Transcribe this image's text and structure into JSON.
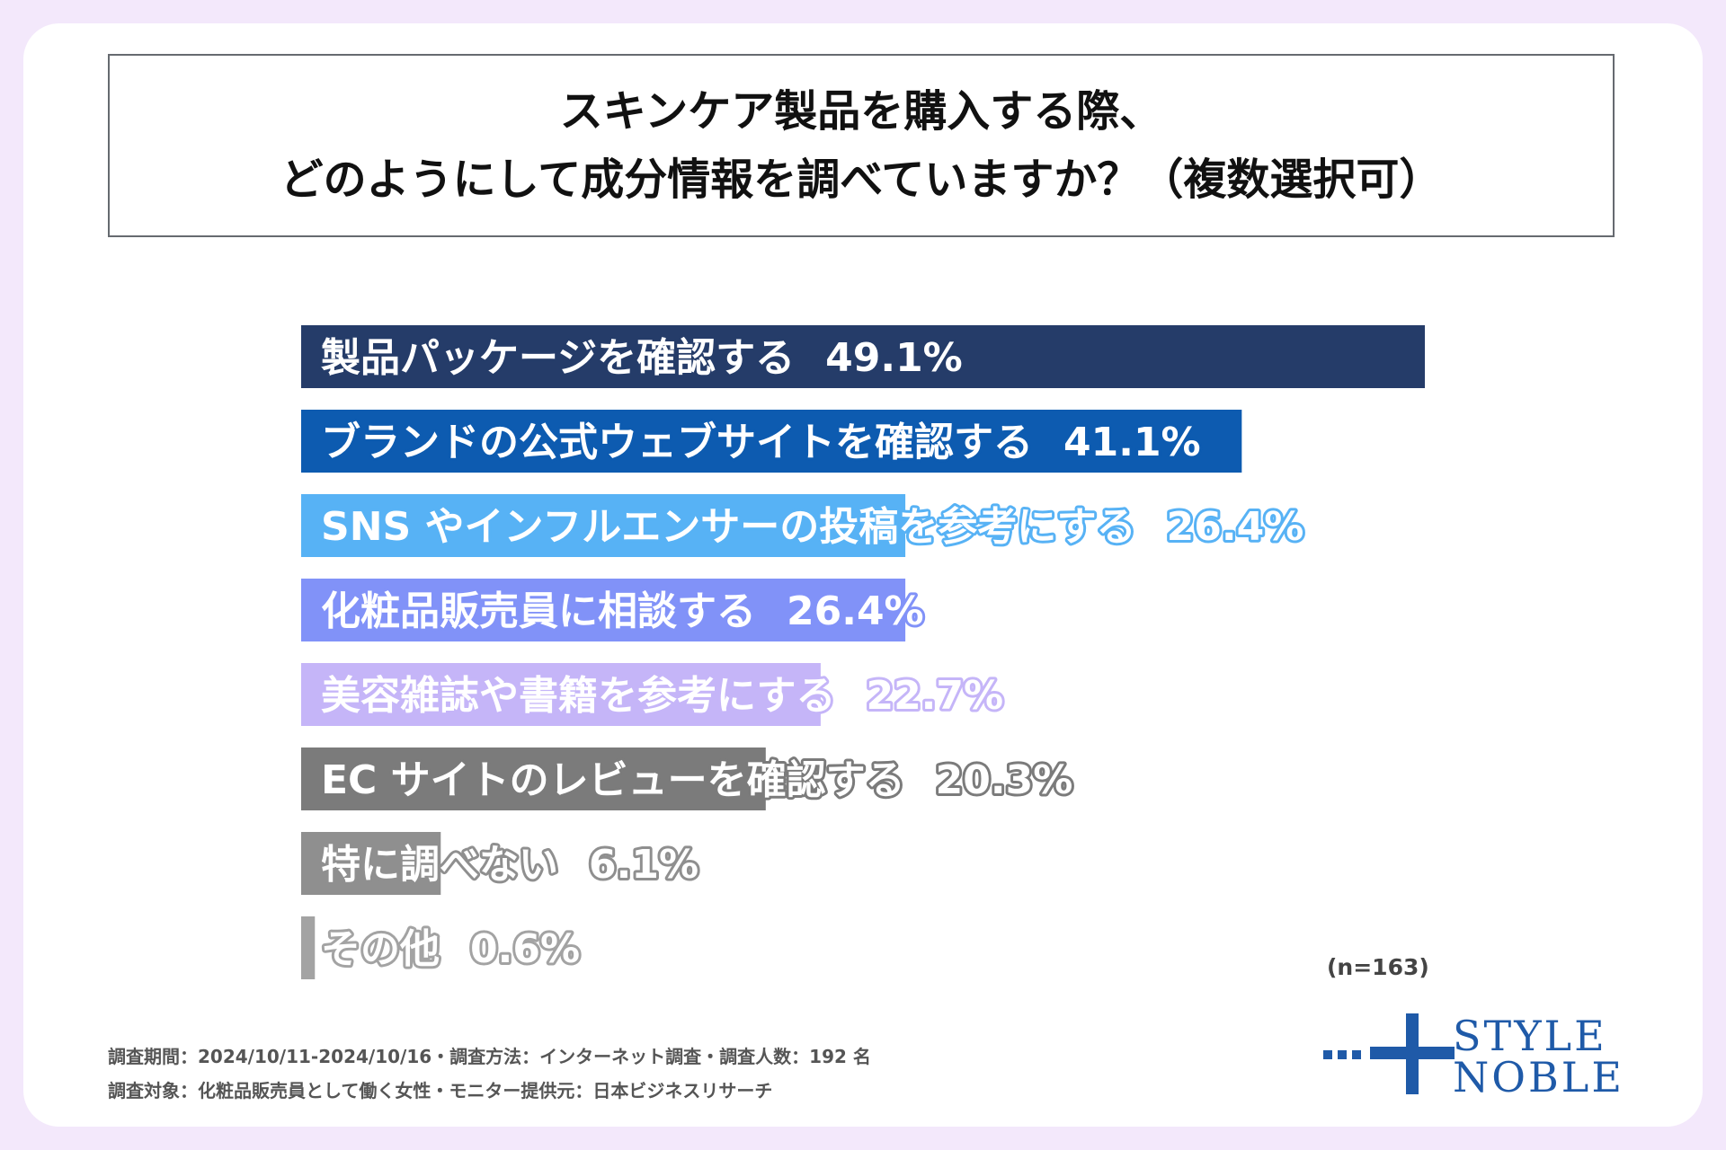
{
  "title": {
    "line1": "スキンケア製品を購入する際、",
    "line2": "どのようにして成分情報を調べていますか？（複数選択可）"
  },
  "chart_data": {
    "type": "bar",
    "orientation": "horizontal",
    "title": "スキンケア製品を購入する際、どのようにして成分情報を調べていますか？（複数選択可）",
    "categories": [
      "製品パッケージを確認する",
      "ブランドの公式ウェブサイトを確認する",
      "SNS やインフルエンサーの投稿を参考にする",
      "化粧品販売員に相談する",
      "美容雑誌や書籍を参考にする",
      "EC サイトのレビューを確認する",
      "特に調べない",
      "その他"
    ],
    "values": [
      49.1,
      41.1,
      26.4,
      26.4,
      22.7,
      20.3,
      6.1,
      0.6
    ],
    "value_labels": [
      "49.1%",
      "41.1%",
      "26.4%",
      "26.4%",
      "22.7%",
      "20.3%",
      "6.1%",
      "0.6%"
    ],
    "colors": [
      "#253c69",
      "#0d5bb0",
      "#57b2f5",
      "#8192f8",
      "#c5b5f8",
      "#7b7b7b",
      "#8f8f8f",
      "#a3a3a3"
    ],
    "xlim": [
      0,
      49.1
    ],
    "grid": false,
    "legend": "none"
  },
  "sample_size": "(n=163)",
  "footer": {
    "line1": "調査期間：2024/10/11-2024/10/16・調査方法：インターネット調査・調査人数：192 名",
    "line2": "調査対象：化粧品販売員として働く女性・モニター提供元：日本ビジネスリサーチ"
  },
  "logo": {
    "line1": "STYLE",
    "line2": "NOBLE",
    "color": "#1f5aa8"
  },
  "colors": {
    "background": "#f3e8fb",
    "card": "#ffffff",
    "title_border": "#666a70"
  }
}
